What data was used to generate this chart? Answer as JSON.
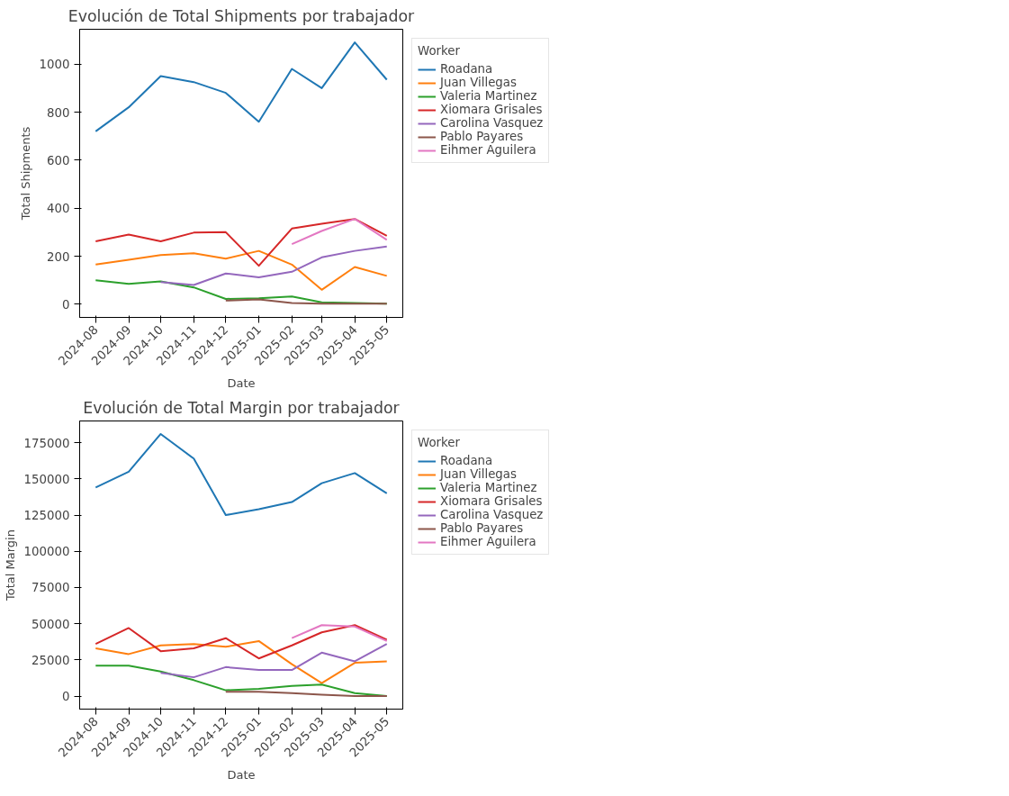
{
  "chart_data": [
    {
      "type": "line",
      "title": "Evolución de Total Shipments por trabajador",
      "xlabel": "Date",
      "ylabel": "Total Shipments",
      "legend_title": "Worker",
      "legend": "right",
      "grid": false,
      "x": [
        "2024-08",
        "2024-09",
        "2024-10",
        "2024-11",
        "2024-12",
        "2025-01",
        "2025-02",
        "2025-03",
        "2025-04",
        "2025-05"
      ],
      "xlim": [
        "2024-07-17",
        "2025-05-16"
      ],
      "xticks": [
        "2024-08",
        "2024-09",
        "2024-10",
        "2024-11",
        "2024-12",
        "2025-01",
        "2025-02",
        "2025-03",
        "2025-04",
        "2025-05"
      ],
      "ylim": [
        -55,
        1145
      ],
      "yticks": [
        0,
        200,
        400,
        600,
        800,
        1000
      ],
      "series": [
        {
          "name": "Roadana",
          "color": "#1f77b4",
          "values": [
            720,
            820,
            950,
            925,
            880,
            760,
            980,
            900,
            1090,
            935
          ]
        },
        {
          "name": "Juan Villegas",
          "color": "#ff7f0e",
          "values": [
            165,
            185,
            205,
            212,
            190,
            222,
            165,
            60,
            155,
            118
          ]
        },
        {
          "name": "Valeria Martinez",
          "color": "#2ca02c",
          "values": [
            100,
            85,
            95,
            70,
            22,
            25,
            32,
            8,
            5,
            2
          ]
        },
        {
          "name": "Xiomara Grisales",
          "color": "#d62728",
          "values": [
            262,
            290,
            262,
            298,
            300,
            160,
            315,
            335,
            355,
            285
          ]
        },
        {
          "name": "Carolina Vasquez",
          "color": "#9467bd",
          "values": [
            null,
            null,
            92,
            80,
            128,
            112,
            135,
            195,
            222,
            240
          ]
        },
        {
          "name": "Pablo Payares",
          "color": "#8c564b",
          "values": [
            null,
            null,
            null,
            null,
            15,
            20,
            5,
            2,
            2,
            2
          ]
        },
        {
          "name": "Eihmer Aguilera",
          "color": "#e377c2",
          "values": [
            null,
            null,
            null,
            null,
            null,
            null,
            250,
            305,
            355,
            268
          ]
        }
      ]
    },
    {
      "type": "line",
      "title": "Evolución de Total Margin por trabajador",
      "xlabel": "Date",
      "ylabel": "Total Margin",
      "legend_title": "Worker",
      "legend": "right",
      "grid": false,
      "x": [
        "2024-08",
        "2024-09",
        "2024-10",
        "2024-11",
        "2024-12",
        "2025-01",
        "2025-02",
        "2025-03",
        "2025-04",
        "2025-05"
      ],
      "xlim": [
        "2024-07-17",
        "2025-05-16"
      ],
      "xticks": [
        "2024-08",
        "2024-09",
        "2024-10",
        "2024-11",
        "2024-12",
        "2025-01",
        "2025-02",
        "2025-03",
        "2025-04",
        "2025-05"
      ],
      "ylim": [
        -9000,
        190000
      ],
      "yticks": [
        0,
        25000,
        50000,
        75000,
        100000,
        125000,
        150000,
        175000
      ],
      "series": [
        {
          "name": "Roadana",
          "color": "#1f77b4",
          "values": [
            144000,
            155000,
            181000,
            164000,
            125000,
            129000,
            134000,
            147000,
            154000,
            140000
          ]
        },
        {
          "name": "Juan Villegas",
          "color": "#ff7f0e",
          "values": [
            33000,
            29000,
            35000,
            36000,
            34000,
            38000,
            22000,
            9000,
            23000,
            24000
          ]
        },
        {
          "name": "Valeria Martinez",
          "color": "#2ca02c",
          "values": [
            21000,
            21000,
            17000,
            11000,
            4000,
            5000,
            7000,
            8000,
            2000,
            0
          ]
        },
        {
          "name": "Xiomara Grisales",
          "color": "#d62728",
          "values": [
            36000,
            47000,
            31000,
            33000,
            40000,
            26000,
            35000,
            44000,
            49000,
            39000
          ]
        },
        {
          "name": "Carolina Vasquez",
          "color": "#9467bd",
          "values": [
            null,
            null,
            16000,
            13000,
            20000,
            18000,
            18000,
            30000,
            24000,
            36000
          ]
        },
        {
          "name": "Pablo Payares",
          "color": "#8c564b",
          "values": [
            null,
            null,
            null,
            null,
            3000,
            3000,
            2000,
            1000,
            0,
            0
          ]
        },
        {
          "name": "Eihmer Aguilera",
          "color": "#e377c2",
          "values": [
            null,
            null,
            null,
            null,
            null,
            null,
            40000,
            49000,
            48000,
            38000
          ]
        }
      ]
    }
  ]
}
